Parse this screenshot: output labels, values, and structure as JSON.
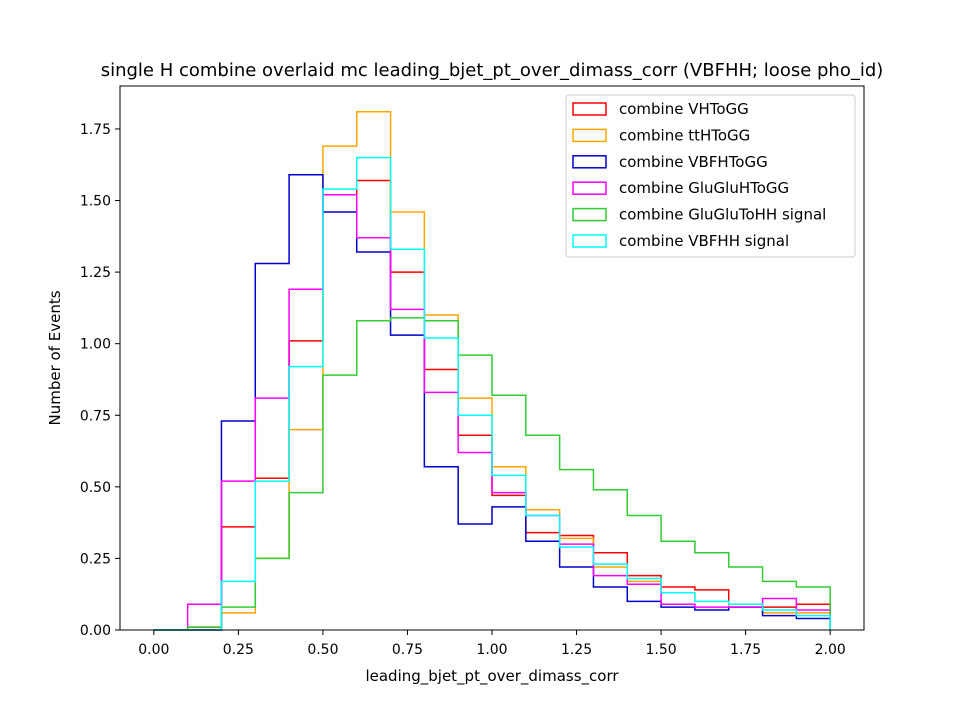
{
  "chart_data": {
    "type": "histogram-step",
    "title": "single H combine overlaid mc leading_bjet_pt_over_dimass_corr (VBFHH; loose pho_id)",
    "xlabel": "leading_bjet_pt_over_dimass_corr",
    "ylabel": "Number of Events",
    "xlim": [
      -0.1,
      2.1
    ],
    "ylim": [
      0,
      1.9
    ],
    "xticks": [
      "0.00",
      "0.25",
      "0.50",
      "0.75",
      "1.00",
      "1.25",
      "1.50",
      "1.75",
      "2.00"
    ],
    "xtick_values": [
      0,
      0.25,
      0.5,
      0.75,
      1.0,
      1.25,
      1.5,
      1.75,
      2.0
    ],
    "yticks": [
      "0.00",
      "0.25",
      "0.50",
      "0.75",
      "1.00",
      "1.25",
      "1.50",
      "1.75"
    ],
    "ytick_values": [
      0,
      0.25,
      0.5,
      0.75,
      1.0,
      1.25,
      1.5,
      1.75
    ],
    "bin_edges": [
      0.0,
      0.1,
      0.2,
      0.3,
      0.4,
      0.5,
      0.6,
      0.7,
      0.8,
      0.9,
      1.0,
      1.1,
      1.2,
      1.3,
      1.4,
      1.5,
      1.6,
      1.7,
      1.8,
      1.9,
      2.0
    ],
    "legend_position": "top-right",
    "series": [
      {
        "name": "combine VHToGG",
        "color": "#ff0000",
        "values": [
          0.0,
          0.01,
          0.36,
          0.53,
          1.01,
          1.52,
          1.57,
          1.25,
          0.91,
          0.68,
          0.47,
          0.34,
          0.33,
          0.27,
          0.19,
          0.15,
          0.14,
          0.09,
          0.08,
          0.09
        ]
      },
      {
        "name": "combine ttHToGG",
        "color": "#ffa500",
        "values": [
          0.0,
          0.0,
          0.06,
          0.25,
          0.7,
          1.69,
          1.81,
          1.46,
          1.1,
          0.81,
          0.57,
          0.42,
          0.32,
          0.22,
          0.17,
          0.13,
          0.1,
          0.08,
          0.06,
          0.06
        ]
      },
      {
        "name": "combine VBFHToGG",
        "color": "#0000cc",
        "values": [
          0.0,
          0.0,
          0.73,
          1.28,
          1.59,
          1.46,
          1.32,
          1.03,
          0.57,
          0.37,
          0.43,
          0.31,
          0.22,
          0.15,
          0.1,
          0.08,
          0.07,
          0.08,
          0.05,
          0.04
        ]
      },
      {
        "name": "combine GluGluHToGG",
        "color": "#ff00ff",
        "values": [
          0.0,
          0.09,
          0.52,
          0.81,
          1.19,
          1.52,
          1.37,
          1.12,
          0.83,
          0.62,
          0.48,
          0.4,
          0.3,
          0.19,
          0.16,
          0.09,
          0.08,
          0.08,
          0.11,
          0.07
        ]
      },
      {
        "name": "combine GluGluToHH signal",
        "color": "#33cc33",
        "values": [
          0.0,
          0.01,
          0.08,
          0.25,
          0.48,
          0.89,
          1.08,
          1.09,
          1.08,
          0.96,
          0.82,
          0.68,
          0.56,
          0.49,
          0.4,
          0.31,
          0.27,
          0.22,
          0.17,
          0.15
        ]
      },
      {
        "name": "combine VBFHH signal",
        "color": "#00ffff",
        "values": [
          0.0,
          0.0,
          0.17,
          0.52,
          0.92,
          1.54,
          1.65,
          1.33,
          1.02,
          0.75,
          0.54,
          0.4,
          0.29,
          0.23,
          0.18,
          0.13,
          0.1,
          0.09,
          0.07,
          0.05
        ]
      }
    ]
  }
}
